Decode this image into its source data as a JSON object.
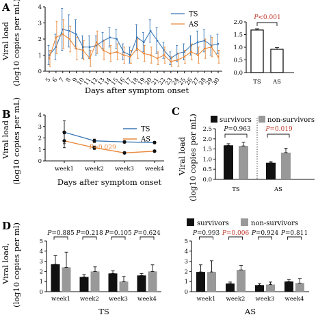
{
  "panels": {
    "A": {
      "label": "A"
    },
    "B": {
      "label": "B"
    },
    "C": {
      "label": "C"
    },
    "D": {
      "label": "D"
    }
  },
  "colors": {
    "TS": "#3a78b5",
    "AS": "#e8883a",
    "survivors": "#111111",
    "non_survivors": "#999999",
    "p_sig": "#c0392b",
    "p_ns": "#111111"
  },
  "chart_data": [
    {
      "id": "A_line",
      "type": "line",
      "xlabel": "Days after symptom onset",
      "ylabel": "Viral load",
      "ylabel2": "(log10 copies per mL)",
      "x": [
        "5",
        "6",
        "7",
        "8",
        "9",
        "10",
        "11",
        "12",
        "13",
        "14",
        "15",
        "16",
        "17",
        "18",
        "19",
        "20",
        "21",
        "22",
        "23",
        "24",
        "25",
        "26",
        "27",
        "28",
        "29",
        "30"
      ],
      "ylim": [
        0,
        4
      ],
      "yticks": [
        "0",
        "1",
        "2",
        "3",
        "4"
      ],
      "series": [
        {
          "name": "TS",
          "values": [
            1.0,
            1.5,
            2.6,
            2.5,
            2.3,
            1.5,
            1.5,
            1.6,
            1.9,
            2.1,
            2.0,
            1.2,
            1.0,
            2.1,
            1.8,
            2.5,
            1.9,
            1.3,
            0.8,
            1.1,
            1.2,
            1.6,
            1.8,
            1.9,
            1.6,
            1.7
          ],
          "err": [
            0.6,
            0.8,
            1.3,
            1.0,
            0.9,
            0.7,
            0.7,
            0.6,
            0.5,
            0.6,
            0.6,
            0.5,
            0.5,
            0.8,
            0.6,
            0.7,
            0.8,
            0.5,
            0.4,
            0.5,
            0.5,
            0.6,
            0.7,
            0.7,
            0.6,
            0.6
          ]
        },
        {
          "name": "AS",
          "values": [
            0.8,
            2.1,
            2.3,
            2.0,
            1.4,
            1.3,
            0.8,
            1.8,
            1.3,
            1.1,
            1.2,
            1.0,
            0.9,
            1.4,
            1.1,
            1.0,
            0.8,
            1.0,
            0.6,
            0.7,
            0.9,
            1.2,
            1.0,
            1.4,
            1.5,
            0.9
          ],
          "err": [
            0.5,
            1.0,
            0.9,
            0.8,
            0.7,
            0.6,
            0.5,
            0.7,
            0.6,
            0.5,
            0.5,
            0.5,
            0.4,
            0.6,
            0.5,
            0.5,
            0.4,
            0.5,
            0.3,
            0.4,
            0.4,
            0.5,
            0.5,
            0.6,
            0.6,
            0.4
          ]
        }
      ],
      "legend": [
        "TS",
        "AS"
      ]
    },
    {
      "id": "A_bar",
      "type": "bar",
      "categories": [
        "TS",
        "AS"
      ],
      "values": [
        1.68,
        0.92
      ],
      "err": [
        0.05,
        0.07
      ],
      "ylim": [
        0,
        2.0
      ],
      "yticks": [
        "0.0",
        "0.5",
        "1.0",
        "1.5",
        "2.0"
      ],
      "pvalue": "P<0.001"
    },
    {
      "id": "B_line",
      "type": "line",
      "xlabel": "Days after symptom onset",
      "ylabel": "Viral load",
      "ylabel2": "(log10 copies per mL)",
      "x": [
        "week1",
        "week2",
        "week3",
        "week4"
      ],
      "ylim": [
        0,
        4
      ],
      "yticks": [
        "0",
        "1",
        "2",
        "3",
        "4"
      ],
      "series": [
        {
          "name": "TS",
          "values": [
            2.5,
            1.75,
            1.65,
            1.6
          ],
          "err": [
            1.0,
            0.15,
            0.1,
            0.1
          ]
        },
        {
          "name": "AS",
          "values": [
            1.75,
            1.15,
            0.7,
            0.85
          ],
          "err": [
            0.6,
            0.15,
            0.08,
            0.08
          ]
        }
      ],
      "legend": [
        "TS",
        "AS"
      ],
      "pvalue": "P=0.029"
    },
    {
      "id": "C_bar",
      "type": "bar",
      "categories": [
        "TS",
        "AS"
      ],
      "ylabel": "Viral load",
      "ylabel2": "(log10 copies per mL)",
      "ylim": [
        0,
        2.5
      ],
      "yticks": [
        "0.0",
        "0.5",
        "1.0",
        "1.5",
        "2.0",
        "2.5"
      ],
      "series": [
        {
          "name": "survivors",
          "values": [
            1.68,
            0.82
          ],
          "err": [
            0.08,
            0.06
          ]
        },
        {
          "name": "non-survivors",
          "values": [
            1.65,
            1.32
          ],
          "err": [
            0.18,
            0.22
          ]
        }
      ],
      "pvalues": [
        "P=0.963",
        "P=0.019"
      ]
    },
    {
      "id": "D_TS",
      "type": "bar",
      "xlabel": "TS",
      "ylabel": "Viral load,",
      "ylabel2": "(log10 copies per ml)",
      "categories": [
        "week1",
        "week2",
        "week3",
        "week4"
      ],
      "ylim": [
        0,
        5
      ],
      "yticks": [
        "0",
        "1",
        "2",
        "3",
        "4",
        "5"
      ],
      "series": [
        {
          "name": "survivors",
          "values": [
            2.7,
            1.45,
            1.8,
            1.6
          ],
          "err": [
            0.85,
            0.25,
            0.25,
            0.2
          ]
        },
        {
          "name": "non-survivors",
          "values": [
            2.4,
            2.0,
            1.0,
            2.0
          ],
          "err": [
            1.5,
            0.45,
            0.5,
            0.65
          ]
        }
      ],
      "pvalues": [
        "P=0.885",
        "P=0.218",
        "P=0.105",
        "P=0.624"
      ]
    },
    {
      "id": "D_AS",
      "type": "bar",
      "xlabel": "AS",
      "categories": [
        "week1",
        "week2",
        "week3",
        "week4"
      ],
      "ylim": [
        0,
        5
      ],
      "yticks": [
        "0",
        "1",
        "2",
        "3",
        "4",
        "5"
      ],
      "series": [
        {
          "name": "survivors",
          "values": [
            1.95,
            0.8,
            0.65,
            1.0
          ],
          "err": [
            0.7,
            0.15,
            0.15,
            0.2
          ]
        },
        {
          "name": "non-survivors",
          "values": [
            1.95,
            2.15,
            0.7,
            0.85
          ],
          "err": [
            1.1,
            0.45,
            0.25,
            0.45
          ]
        }
      ],
      "pvalues": [
        "P=0.993",
        "P=0.006",
        "P=0.924",
        "P=0.811"
      ],
      "sig_index": 1
    }
  ],
  "legends": {
    "survivors": "survivors",
    "non_survivors": "non-survivors"
  }
}
